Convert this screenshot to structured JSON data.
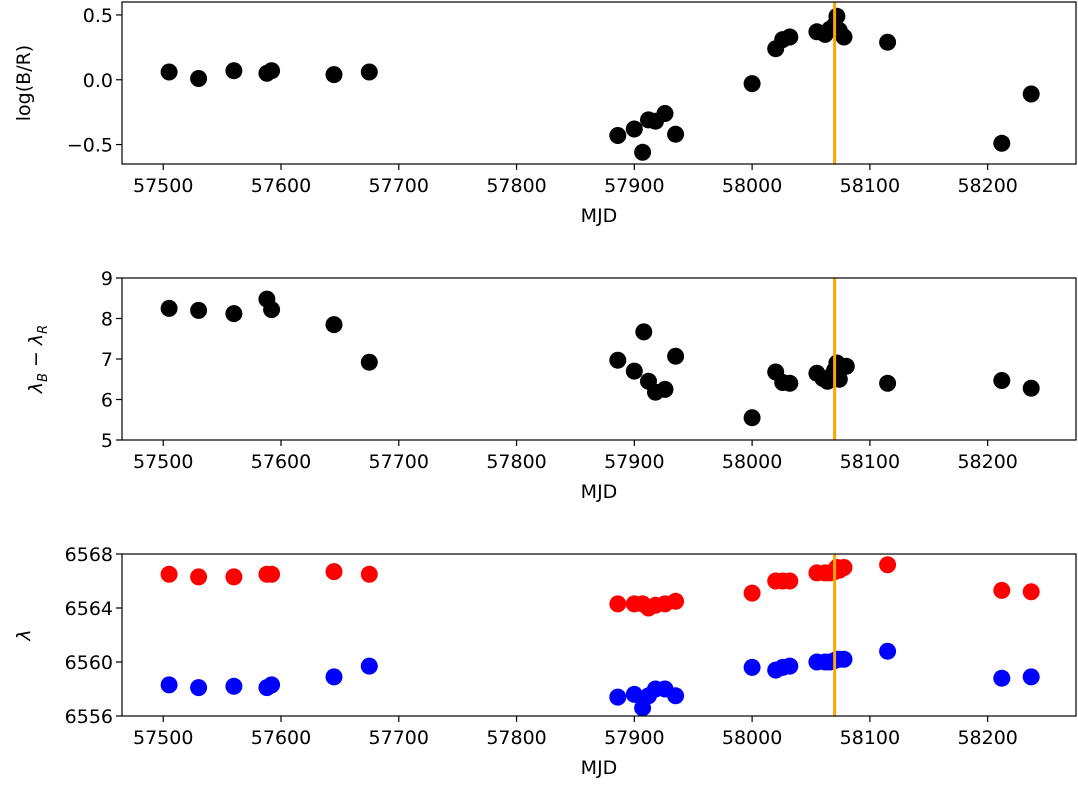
{
  "chart_data": [
    {
      "type": "scatter",
      "title": "",
      "xlabel": "MJD",
      "ylabel": "log(B/R)",
      "xlim": [
        57465,
        58275
      ],
      "ylim": [
        -0.65,
        0.6
      ],
      "xticks": [
        57500,
        57600,
        57700,
        57800,
        57900,
        58000,
        58100,
        58200
      ],
      "yticks": [
        -0.5,
        0.0,
        0.5
      ],
      "ytick_labels": [
        "−0.5",
        "0.0",
        "0.5"
      ],
      "grid": false,
      "vline": {
        "x": 58070,
        "color": "#ffa500"
      },
      "series": [
        {
          "color": "#000000",
          "points": [
            [
              57505,
              0.06
            ],
            [
              57530,
              0.01
            ],
            [
              57560,
              0.07
            ],
            [
              57588,
              0.05
            ],
            [
              57592,
              0.07
            ],
            [
              57645,
              0.04
            ],
            [
              57675,
              0.06
            ],
            [
              57886,
              -0.43
            ],
            [
              57900,
              -0.38
            ],
            [
              57907,
              -0.56
            ],
            [
              57912,
              -0.31
            ],
            [
              57918,
              -0.32
            ],
            [
              57926,
              -0.26
            ],
            [
              57935,
              -0.42
            ],
            [
              58000,
              -0.03
            ],
            [
              58020,
              0.24
            ],
            [
              58026,
              0.31
            ],
            [
              58032,
              0.33
            ],
            [
              58055,
              0.37
            ],
            [
              58062,
              0.35
            ],
            [
              58066,
              0.39
            ],
            [
              58070,
              0.42
            ],
            [
              58072,
              0.49
            ],
            [
              58074,
              0.38
            ],
            [
              58078,
              0.33
            ],
            [
              58115,
              0.29
            ],
            [
              58212,
              -0.49
            ],
            [
              58237,
              -0.11
            ]
          ]
        }
      ]
    },
    {
      "type": "scatter",
      "title": "",
      "xlabel": "MJD",
      "ylabel": "λB − λR",
      "ylabel_parts": {
        "a": "λ",
        "a_sub": "B",
        "op": " − ",
        "b": "λ",
        "b_sub": "R"
      },
      "xlim": [
        57465,
        58275
      ],
      "ylim": [
        5,
        9
      ],
      "xticks": [
        57500,
        57600,
        57700,
        57800,
        57900,
        58000,
        58100,
        58200
      ],
      "yticks": [
        5,
        6,
        7,
        8,
        9
      ],
      "ytick_labels": [
        "5",
        "6",
        "7",
        "8",
        "9"
      ],
      "grid": false,
      "vline": {
        "x": 58070,
        "color": "#ffa500"
      },
      "series": [
        {
          "color": "#000000",
          "points": [
            [
              57505,
              8.25
            ],
            [
              57530,
              8.2
            ],
            [
              57560,
              8.12
            ],
            [
              57588,
              8.48
            ],
            [
              57592,
              8.22
            ],
            [
              57645,
              7.85
            ],
            [
              57675,
              6.92
            ],
            [
              57886,
              6.97
            ],
            [
              57900,
              6.7
            ],
            [
              57908,
              7.67
            ],
            [
              57912,
              6.45
            ],
            [
              57918,
              6.18
            ],
            [
              57926,
              6.25
            ],
            [
              57935,
              7.07
            ],
            [
              58000,
              5.55
            ],
            [
              58020,
              6.68
            ],
            [
              58026,
              6.42
            ],
            [
              58032,
              6.4
            ],
            [
              58055,
              6.65
            ],
            [
              58060,
              6.52
            ],
            [
              58064,
              6.45
            ],
            [
              58068,
              6.6
            ],
            [
              58070,
              6.72
            ],
            [
              58072,
              6.9
            ],
            [
              58074,
              6.5
            ],
            [
              58076,
              6.78
            ],
            [
              58080,
              6.82
            ],
            [
              58115,
              6.4
            ],
            [
              58212,
              6.47
            ],
            [
              58237,
              6.28
            ]
          ]
        }
      ]
    },
    {
      "type": "scatter",
      "title": "",
      "xlabel": "MJD",
      "ylabel": "λ",
      "xlim": [
        57465,
        58275
      ],
      "ylim": [
        6556,
        6568
      ],
      "xticks": [
        57500,
        57600,
        57700,
        57800,
        57900,
        58000,
        58100,
        58200
      ],
      "yticks": [
        6556,
        6560,
        6564,
        6568
      ],
      "ytick_labels": [
        "6556",
        "6560",
        "6564",
        "6568"
      ],
      "grid": false,
      "vline": {
        "x": 58070,
        "color": "#ffa500"
      },
      "series": [
        {
          "color": "#ff0000",
          "points": [
            [
              57505,
              6566.5
            ],
            [
              57530,
              6566.3
            ],
            [
              57560,
              6566.3
            ],
            [
              57588,
              6566.5
            ],
            [
              57592,
              6566.5
            ],
            [
              57645,
              6566.7
            ],
            [
              57675,
              6566.5
            ],
            [
              57886,
              6564.3
            ],
            [
              57900,
              6564.3
            ],
            [
              57907,
              6564.3
            ],
            [
              57912,
              6564.0
            ],
            [
              57918,
              6564.2
            ],
            [
              57926,
              6564.3
            ],
            [
              57935,
              6564.5
            ],
            [
              58000,
              6565.1
            ],
            [
              58020,
              6566.0
            ],
            [
              58026,
              6566.0
            ],
            [
              58032,
              6566.0
            ],
            [
              58055,
              6566.6
            ],
            [
              58062,
              6566.6
            ],
            [
              58066,
              6566.6
            ],
            [
              58070,
              6566.7
            ],
            [
              58072,
              6567.0
            ],
            [
              58074,
              6566.8
            ],
            [
              58078,
              6567.0
            ],
            [
              58115,
              6567.2
            ],
            [
              58212,
              6565.3
            ],
            [
              58237,
              6565.2
            ]
          ]
        },
        {
          "color": "#0000ff",
          "points": [
            [
              57505,
              6558.3
            ],
            [
              57530,
              6558.1
            ],
            [
              57560,
              6558.2
            ],
            [
              57588,
              6558.1
            ],
            [
              57592,
              6558.3
            ],
            [
              57645,
              6558.9
            ],
            [
              57675,
              6559.7
            ],
            [
              57886,
              6557.4
            ],
            [
              57900,
              6557.6
            ],
            [
              57907,
              6556.6
            ],
            [
              57912,
              6557.5
            ],
            [
              57918,
              6558.0
            ],
            [
              57926,
              6558.0
            ],
            [
              57935,
              6557.5
            ],
            [
              58000,
              6559.6
            ],
            [
              58020,
              6559.4
            ],
            [
              58026,
              6559.6
            ],
            [
              58032,
              6559.7
            ],
            [
              58055,
              6560.0
            ],
            [
              58062,
              6560.0
            ],
            [
              58066,
              6560.0
            ],
            [
              58070,
              6560.1
            ],
            [
              58072,
              6560.2
            ],
            [
              58074,
              6560.2
            ],
            [
              58078,
              6560.2
            ],
            [
              58115,
              6560.8
            ],
            [
              58212,
              6558.8
            ],
            [
              58237,
              6558.9
            ]
          ]
        }
      ]
    }
  ]
}
